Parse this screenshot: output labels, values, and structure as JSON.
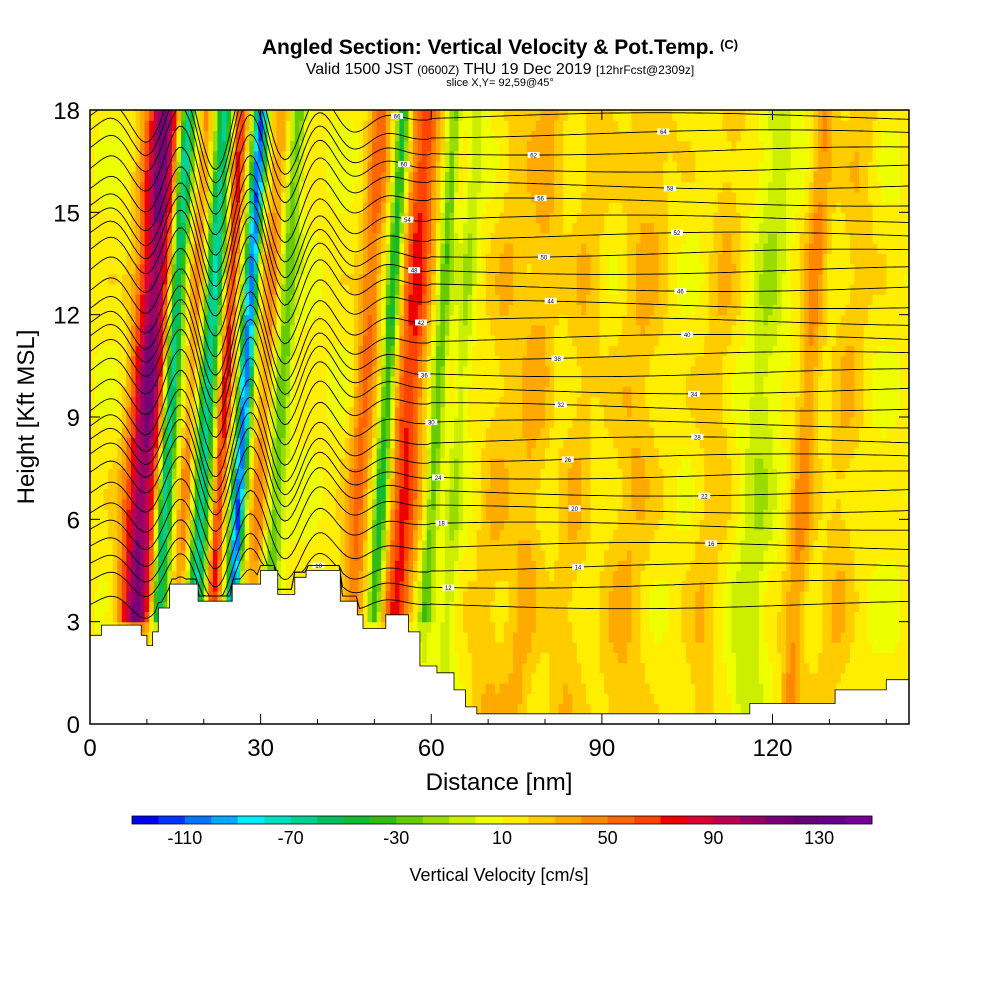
{
  "header": {
    "title": "Angled Section: Vertical Velocity & Pot.Temp.",
    "title_unit": "(C)",
    "valid_prefix": "Valid 1500 JST",
    "valid_utc": "(0600Z)",
    "valid_date": "THU 19 Dec 2019",
    "forecast_tag": "[12hrFcst@2309z]",
    "slice": "slice X,Y= 92,59@45°"
  },
  "chart_data": {
    "type": "heatmap",
    "description_kind": "vertical cross-section, filled vertical velocity with potential temperature contours",
    "xlabel": "Distance [nm]",
    "ylabel": "Height [Kft MSL]",
    "xlim": [
      0,
      144
    ],
    "ylim": [
      0,
      18
    ],
    "x_ticks": [
      0,
      30,
      60,
      90,
      120
    ],
    "y_ticks": [
      0,
      3,
      6,
      9,
      12,
      15,
      18
    ],
    "colorbar": {
      "label": "Vertical Velocity [cm/s]",
      "tick_labels": [
        "-110",
        "-70",
        "-30",
        "10",
        "50",
        "90",
        "130"
      ],
      "levels": [
        -130,
        -120,
        -110,
        -100,
        -90,
        -80,
        -70,
        -60,
        -50,
        -40,
        -30,
        -20,
        -10,
        0,
        10,
        20,
        30,
        40,
        50,
        60,
        70,
        80,
        90,
        100,
        110,
        120,
        130,
        140,
        150
      ],
      "colors": [
        "#0000ee",
        "#0033ff",
        "#0077ff",
        "#00aaff",
        "#00eeff",
        "#00e0c0",
        "#00d090",
        "#00c060",
        "#11bb33",
        "#33bb11",
        "#66cc00",
        "#99dd00",
        "#ccee00",
        "#eeff00",
        "#ffee00",
        "#ffcc00",
        "#ffaa00",
        "#ff8800",
        "#ff6600",
        "#ff4400",
        "#ee0000",
        "#dd0033",
        "#bb0055",
        "#990066",
        "#770077",
        "#660077",
        "#660088",
        "#770099"
      ]
    },
    "velocity_features": [
      {
        "x": 10,
        "w": 3.0,
        "v": 100
      },
      {
        "x": 14,
        "w": 1.4,
        "v": -90
      },
      {
        "x": 17.5,
        "w": 1.2,
        "v": 30
      },
      {
        "x": 20.5,
        "w": 1.5,
        "v": -80
      },
      {
        "x": 23.5,
        "w": 1.1,
        "v": 60
      },
      {
        "x": 27,
        "w": 1.2,
        "v": -120
      },
      {
        "x": 30.5,
        "w": 1.7,
        "v": 30
      },
      {
        "x": 33.5,
        "w": 1.5,
        "v": -40
      },
      {
        "x": 48,
        "w": 2.0,
        "v": 40
      },
      {
        "x": 52,
        "w": 1.2,
        "v": -60
      },
      {
        "x": 56,
        "w": 2.5,
        "v": 60
      },
      {
        "x": 61,
        "w": 1.2,
        "v": -40
      },
      {
        "x": 65,
        "w": 1.5,
        "v": -20
      },
      {
        "x": 72,
        "w": 3.0,
        "v": 15
      },
      {
        "x": 78,
        "w": 3.0,
        "v": 20
      },
      {
        "x": 86,
        "w": 3.0,
        "v": 15
      },
      {
        "x": 96,
        "w": 4.0,
        "v": 18
      },
      {
        "x": 110,
        "w": 3.0,
        "v": 15
      },
      {
        "x": 118,
        "w": 3.0,
        "v": -20
      },
      {
        "x": 126,
        "w": 2.0,
        "v": 30
      },
      {
        "x": 133,
        "w": 3.0,
        "v": 15
      }
    ],
    "terrain_kft": [
      [
        0,
        2.6
      ],
      [
        2,
        2.9
      ],
      [
        8,
        2.9
      ],
      [
        9,
        2.6
      ],
      [
        10,
        2.3
      ],
      [
        11,
        2.7
      ],
      [
        12,
        3.4
      ],
      [
        14,
        4.1
      ],
      [
        17,
        4.1
      ],
      [
        19,
        3.6
      ],
      [
        23,
        3.6
      ],
      [
        25,
        4.1
      ],
      [
        28,
        4.1
      ],
      [
        30,
        4.5
      ],
      [
        33,
        3.8
      ],
      [
        36,
        4.3
      ],
      [
        38,
        4.5
      ],
      [
        42,
        4.5
      ],
      [
        44,
        3.6
      ],
      [
        47,
        3.2
      ],
      [
        48,
        2.8
      ],
      [
        50,
        2.8
      ],
      [
        52,
        3.2
      ],
      [
        54,
        3.2
      ],
      [
        56,
        2.7
      ],
      [
        58,
        1.7
      ],
      [
        61,
        1.5
      ],
      [
        64,
        1.0
      ],
      [
        66,
        0.5
      ],
      [
        68,
        0.3
      ],
      [
        114,
        0.3
      ],
      [
        116,
        0.6
      ],
      [
        127,
        0.6
      ],
      [
        131,
        1.0
      ],
      [
        138,
        1.0
      ],
      [
        140,
        1.3
      ],
      [
        144,
        1.3
      ]
    ],
    "theta_contours": [
      {
        "base_kft": 3.5,
        "label": "10"
      },
      {
        "base_kft": 4.1,
        "label": "12"
      },
      {
        "base_kft": 4.6,
        "label": "14"
      },
      {
        "base_kft": 5.2,
        "label": "16"
      },
      {
        "base_kft": 5.8,
        "label": "18"
      },
      {
        "base_kft": 6.3,
        "label": "20"
      },
      {
        "base_kft": 6.8,
        "label": "22"
      },
      {
        "base_kft": 7.3,
        "label": "24"
      },
      {
        "base_kft": 7.8,
        "label": "26"
      },
      {
        "base_kft": 8.3,
        "label": "28"
      },
      {
        "base_kft": 8.8,
        "label": "30"
      },
      {
        "base_kft": 9.3,
        "label": "32"
      },
      {
        "base_kft": 9.8,
        "label": "34"
      },
      {
        "base_kft": 10.3,
        "label": "36"
      },
      {
        "base_kft": 10.8,
        "label": "38"
      },
      {
        "base_kft": 11.3,
        "label": "40"
      },
      {
        "base_kft": 11.8,
        "label": "42"
      },
      {
        "base_kft": 12.3,
        "label": "44"
      },
      {
        "base_kft": 12.8,
        "label": "46"
      },
      {
        "base_kft": 13.3,
        "label": "48"
      },
      {
        "base_kft": 13.8,
        "label": "50"
      },
      {
        "base_kft": 14.3,
        "label": "52"
      },
      {
        "base_kft": 14.8,
        "label": "54"
      },
      {
        "base_kft": 15.3,
        "label": "56"
      },
      {
        "base_kft": 15.8,
        "label": "58"
      },
      {
        "base_kft": 16.3,
        "label": "60"
      },
      {
        "base_kft": 16.8,
        "label": "62"
      },
      {
        "base_kft": 17.3,
        "label": "64"
      },
      {
        "base_kft": 17.8,
        "label": "66"
      }
    ],
    "grid": false,
    "legend": "bottom colorbar"
  }
}
